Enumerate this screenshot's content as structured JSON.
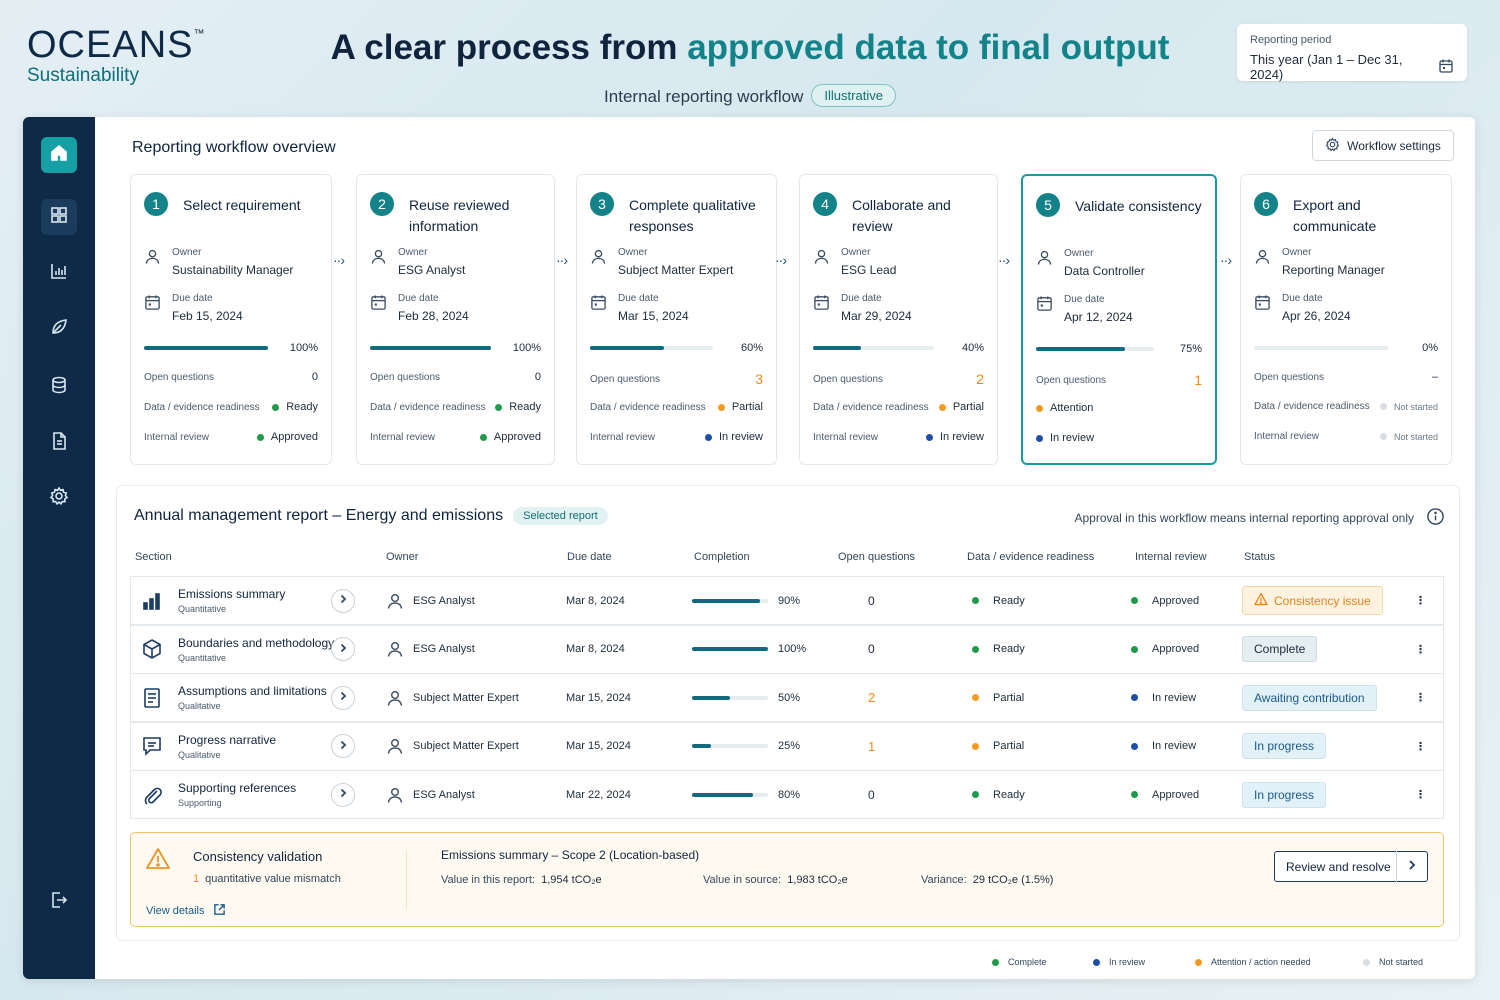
{
  "brand": {
    "name": "OCEANS",
    "tm": "™",
    "sub": "Sustainability"
  },
  "header": {
    "headline_pre": "A clear process from ",
    "headline_accent": "approved data to final output",
    "subline": "Internal reporting workflow",
    "badge": "Illustrative"
  },
  "period": {
    "label": "Reporting period",
    "value": "This year (Jan 1 – Dec 31, 2024)"
  },
  "sidebar": {
    "items": [
      "home-icon",
      "dashboard-icon",
      "chart-icon",
      "leaf-icon",
      "database-icon",
      "document-icon",
      "gear-icon"
    ],
    "logout": "logout-icon"
  },
  "workflow": {
    "title": "Reporting workflow overview",
    "settings_label": "Workflow settings",
    "labels": {
      "owner": "Owner",
      "due": "Due date",
      "open_q": "Open questions",
      "readiness": "Data / evidence readiness",
      "review": "Internal review"
    },
    "steps": [
      {
        "num": "1",
        "title": "Select requirement",
        "owner": "Sustainability Manager",
        "due": "Feb 15, 2024",
        "progress": 100,
        "pct": "100%",
        "open_q": "0",
        "readiness": "Ready",
        "readiness_status": "green",
        "review": "Approved",
        "review_status": "green"
      },
      {
        "num": "2",
        "title": "Reuse reviewed information",
        "owner": "ESG Analyst",
        "due": "Feb 28, 2024",
        "progress": 100,
        "pct": "100%",
        "open_q": "0",
        "readiness": "Ready",
        "readiness_status": "green",
        "review": "Approved",
        "review_status": "green"
      },
      {
        "num": "3",
        "title": "Complete qualitative responses",
        "owner": "Subject Matter Expert",
        "due": "Mar 15, 2024",
        "progress": 60,
        "pct": "60%",
        "open_q": "3",
        "readiness": "Partial",
        "readiness_status": "orange",
        "review": "In review",
        "review_status": "blue"
      },
      {
        "num": "4",
        "title": "Collaborate and review",
        "owner": "ESG Lead",
        "due": "Mar 29, 2024",
        "progress": 40,
        "pct": "40%",
        "open_q": "2",
        "readiness": "Partial",
        "readiness_status": "orange",
        "review": "In review",
        "review_status": "blue"
      },
      {
        "num": "5",
        "title": "Validate consistency",
        "owner": "Data Controller",
        "due": "Apr 12, 2024",
        "progress": 75,
        "pct": "75%",
        "open_q": "1",
        "readiness": "Attention",
        "readiness_status": "orange",
        "review": "In review",
        "review_status": "blue"
      },
      {
        "num": "6",
        "title": "Export and communicate",
        "owner": "Reporting Manager",
        "due": "Apr 26, 2024",
        "progress": 0,
        "pct": "0%",
        "open_q": "–",
        "readiness": "Not started",
        "readiness_status": "grey",
        "review": "Not started",
        "review_status": "grey"
      }
    ]
  },
  "report": {
    "title": "Annual management report – Energy and emissions",
    "badge": "Selected report",
    "note": "Approval in this workflow means internal reporting approval only",
    "columns": [
      "Section",
      "Owner",
      "Due date",
      "Completion",
      "Open questions",
      "Data / evidence readiness",
      "Internal review",
      "Status"
    ],
    "rows": [
      {
        "icon": "bar-chart-icon",
        "name": "Emissions summary",
        "type": "Quantitative",
        "owner": "ESG Analyst",
        "due": "Mar 8, 2024",
        "completion": 90,
        "pct": "90%",
        "open_q": "0",
        "open_q_color": "normal",
        "readiness": "Ready",
        "readiness_status": "green",
        "review": "Approved",
        "review_status": "green",
        "status": "Consistency issue",
        "status_kind": "warn"
      },
      {
        "icon": "cube-icon",
        "name": "Boundaries and methodology",
        "type": "Quantitative",
        "owner": "ESG Analyst",
        "due": "Mar 8, 2024",
        "completion": 100,
        "pct": "100%",
        "open_q": "0",
        "open_q_color": "normal",
        "readiness": "Ready",
        "readiness_status": "green",
        "review": "Approved",
        "review_status": "green",
        "status": "Complete",
        "status_kind": "complete"
      },
      {
        "icon": "document-icon",
        "name": "Assumptions and limitations",
        "type": "Qualitative",
        "owner": "Subject Matter Expert",
        "due": "Mar 15, 2024",
        "completion": 50,
        "pct": "50%",
        "open_q": "2",
        "open_q_color": "orange",
        "readiness": "Partial",
        "readiness_status": "orange",
        "review": "In review",
        "review_status": "blue",
        "status": "Awaiting contribution",
        "status_kind": "await"
      },
      {
        "icon": "chat-icon",
        "name": "Progress narrative",
        "type": "Qualitative",
        "owner": "Subject Matter Expert",
        "due": "Mar 15, 2024",
        "completion": 25,
        "pct": "25%",
        "open_q": "1",
        "open_q_color": "orange",
        "readiness": "Partial",
        "readiness_status": "orange",
        "review": "In review",
        "review_status": "blue",
        "status": "In progress",
        "status_kind": "prog"
      },
      {
        "icon": "paperclip-icon",
        "name": "Supporting references",
        "type": "Supporting",
        "owner": "ESG Analyst",
        "due": "Mar 22, 2024",
        "completion": 80,
        "pct": "80%",
        "open_q": "0",
        "open_q_color": "normal",
        "readiness": "Ready",
        "readiness_status": "green",
        "review": "Approved",
        "review_status": "green",
        "status": "In progress",
        "status_kind": "prog"
      }
    ]
  },
  "validation": {
    "title": "Consistency validation",
    "count": "1",
    "count_label": "quantitative value mismatch",
    "link": "View details",
    "item": "Emissions summary – Scope 2 (Location-based)",
    "report_label": "Value in this report:",
    "report_value": "1,954 tCO₂e",
    "source_label": "Value in source:",
    "source_value": "1,983 tCO₂e",
    "variance_label": "Variance:",
    "variance_value": "29 tCO₂e (1.5%)",
    "button": "Review and resolve"
  },
  "legend": [
    {
      "label": "Complete",
      "status": "green"
    },
    {
      "label": "In review",
      "status": "blue"
    },
    {
      "label": "Attention / action needed",
      "status": "orange"
    },
    {
      "label": "Not started",
      "status": "grey"
    }
  ],
  "colors": {
    "accent": "#138289",
    "navy": "#0e2a47",
    "green": "#1f9a4a",
    "orange": "#f39a21",
    "blue": "#1e4fa8",
    "grey": "#d8dee3"
  }
}
